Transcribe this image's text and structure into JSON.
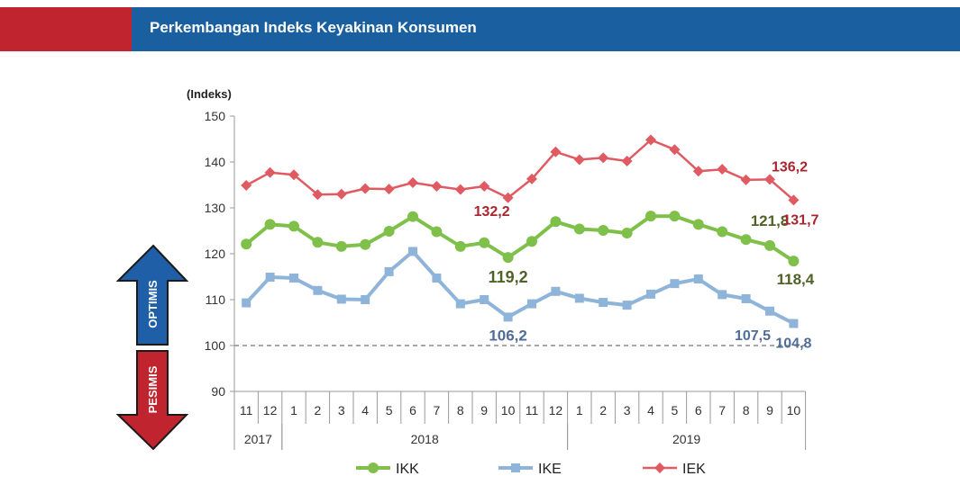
{
  "header": {
    "title": "Perkembangan Indeks Keyakinan Konsumen",
    "accent_color": "#c0242f",
    "bar_color": "#1a5fa0"
  },
  "arrows": {
    "up_label": "OPTIMIS",
    "down_label": "PESIMIS",
    "up_color": "#1f5fa8",
    "down_color": "#c0242f"
  },
  "chart_data": {
    "type": "line",
    "ylabel": "(Indeks)",
    "ylim": [
      90,
      150
    ],
    "yticks": [
      90,
      100,
      110,
      120,
      130,
      140,
      150
    ],
    "categories": [
      "11",
      "12",
      "1",
      "2",
      "3",
      "4",
      "5",
      "6",
      "7",
      "8",
      "9",
      "10",
      "11",
      "12",
      "1",
      "2",
      "3",
      "4",
      "5",
      "6",
      "7",
      "8",
      "9",
      "10"
    ],
    "year_groups": [
      {
        "label": "2017",
        "start": 0,
        "end": 1
      },
      {
        "label": "2018",
        "start": 2,
        "end": 13
      },
      {
        "label": "2019",
        "start": 14,
        "end": 23
      }
    ],
    "reference_line": 100,
    "grid": false,
    "legend_position": "bottom",
    "series": [
      {
        "name": "IKK",
        "color": "#7ec04a",
        "marker": "circle",
        "values": [
          122.1,
          126.4,
          126.0,
          122.5,
          121.6,
          122.0,
          124.9,
          128.1,
          124.8,
          121.6,
          122.4,
          119.2,
          122.7,
          127.0,
          125.4,
          125.1,
          124.5,
          128.2,
          128.2,
          126.4,
          124.8,
          123.1,
          121.8,
          118.4
        ]
      },
      {
        "name": "IKE",
        "color": "#8fb4d9",
        "marker": "square",
        "values": [
          109.3,
          114.9,
          114.7,
          112.0,
          110.1,
          110.0,
          116.1,
          120.5,
          114.7,
          109.1,
          110.0,
          106.2,
          109.1,
          111.8,
          110.3,
          109.4,
          108.8,
          111.2,
          113.5,
          114.5,
          111.1,
          110.2,
          107.5,
          104.8
        ]
      },
      {
        "name": "IEK",
        "color": "#e05a62",
        "marker": "diamond",
        "values": [
          134.9,
          137.7,
          137.2,
          132.9,
          133.0,
          134.2,
          134.1,
          135.5,
          134.7,
          134.0,
          134.7,
          132.2,
          136.3,
          142.2,
          140.5,
          140.9,
          140.2,
          144.8,
          142.7,
          138.0,
          138.4,
          136.1,
          136.2,
          131.7
        ]
      }
    ],
    "annotations": [
      {
        "series": "IKK",
        "index": 11,
        "text": "119,2",
        "color": "#4f6228"
      },
      {
        "series": "IKK",
        "index": 22,
        "text": "121,8",
        "color": "#4f6228"
      },
      {
        "series": "IKK",
        "index": 23,
        "text": "118,4",
        "color": "#4f6228"
      },
      {
        "series": "IKE",
        "index": 11,
        "text": "106,2",
        "color": "#4f6d96"
      },
      {
        "series": "IKE",
        "index": 22,
        "text": "107,5",
        "color": "#4f6d96"
      },
      {
        "series": "IKE",
        "index": 23,
        "text": "104,8",
        "color": "#4f6d96"
      },
      {
        "series": "IEK",
        "index": 11,
        "text": "132,2",
        "color": "#a9252f"
      },
      {
        "series": "IEK",
        "index": 22,
        "text": "136,2",
        "color": "#a9252f"
      },
      {
        "series": "IEK",
        "index": 23,
        "text": "131,7",
        "color": "#a9252f"
      }
    ]
  }
}
